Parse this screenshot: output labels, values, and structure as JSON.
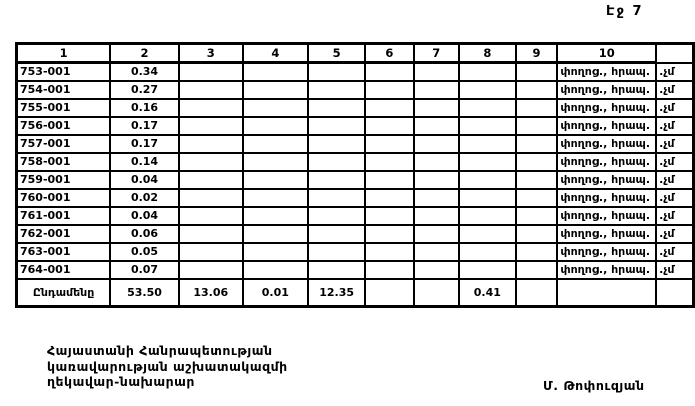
{
  "page": {
    "number_label": "Էջ 7"
  },
  "table": {
    "headers": [
      "1",
      "2",
      "3",
      "4",
      "5",
      "6",
      "7",
      "8",
      "9",
      "10"
    ],
    "rows": [
      {
        "id": "753-001",
        "col2": "0.34",
        "col10": "փողոց., հրապ.",
        "margin": ".չմ"
      },
      {
        "id": "754-001",
        "col2": "0.27",
        "col10": "փողոց., հրապ.",
        "margin": ".չմ"
      },
      {
        "id": "755-001",
        "col2": "0.16",
        "col10": "փողոց., հրապ.",
        "margin": ".չմ"
      },
      {
        "id": "756-001",
        "col2": "0.17",
        "col10": "փողոց., հրապ.",
        "margin": ".չմ"
      },
      {
        "id": "757-001",
        "col2": "0.17",
        "col10": "փողոց., հրապ.",
        "margin": ".չմ"
      },
      {
        "id": "758-001",
        "col2": "0.14",
        "col10": "փողոց., հրապ.",
        "margin": ".չմ"
      },
      {
        "id": "759-001",
        "col2": "0.04",
        "col10": "փողոց., հրապ.",
        "margin": ".չմ"
      },
      {
        "id": "760-001",
        "col2": "0.02",
        "col10": "փողոց., հրապ.",
        "margin": ".չմ"
      },
      {
        "id": "761-001",
        "col2": "0.04",
        "col10": "փողոց., հրապ.",
        "margin": ".չմ"
      },
      {
        "id": "762-001",
        "col2": "0.06",
        "col10": "փողոց., հրապ.",
        "margin": ".չմ"
      },
      {
        "id": "763-001",
        "col2": "0.05",
        "col10": "փողոց., հրապ.",
        "margin": ".չմ"
      },
      {
        "id": "764-001",
        "col2": "0.07",
        "col10": "փողոց., հրապ.",
        "margin": ".չմ"
      }
    ],
    "total": {
      "label": "Ընդամենը",
      "col2": "53.50",
      "col3": "13.06",
      "col4": "0.01",
      "col5": "12.35",
      "col8": "0.41"
    }
  },
  "footer": {
    "left_lines": [
      "Հայաստանի Հանրապետության",
      "կառավարության աշխատակազմի",
      "ղեկավար-նախարար"
    ],
    "signature": "Մ. Թոփուզյան"
  }
}
